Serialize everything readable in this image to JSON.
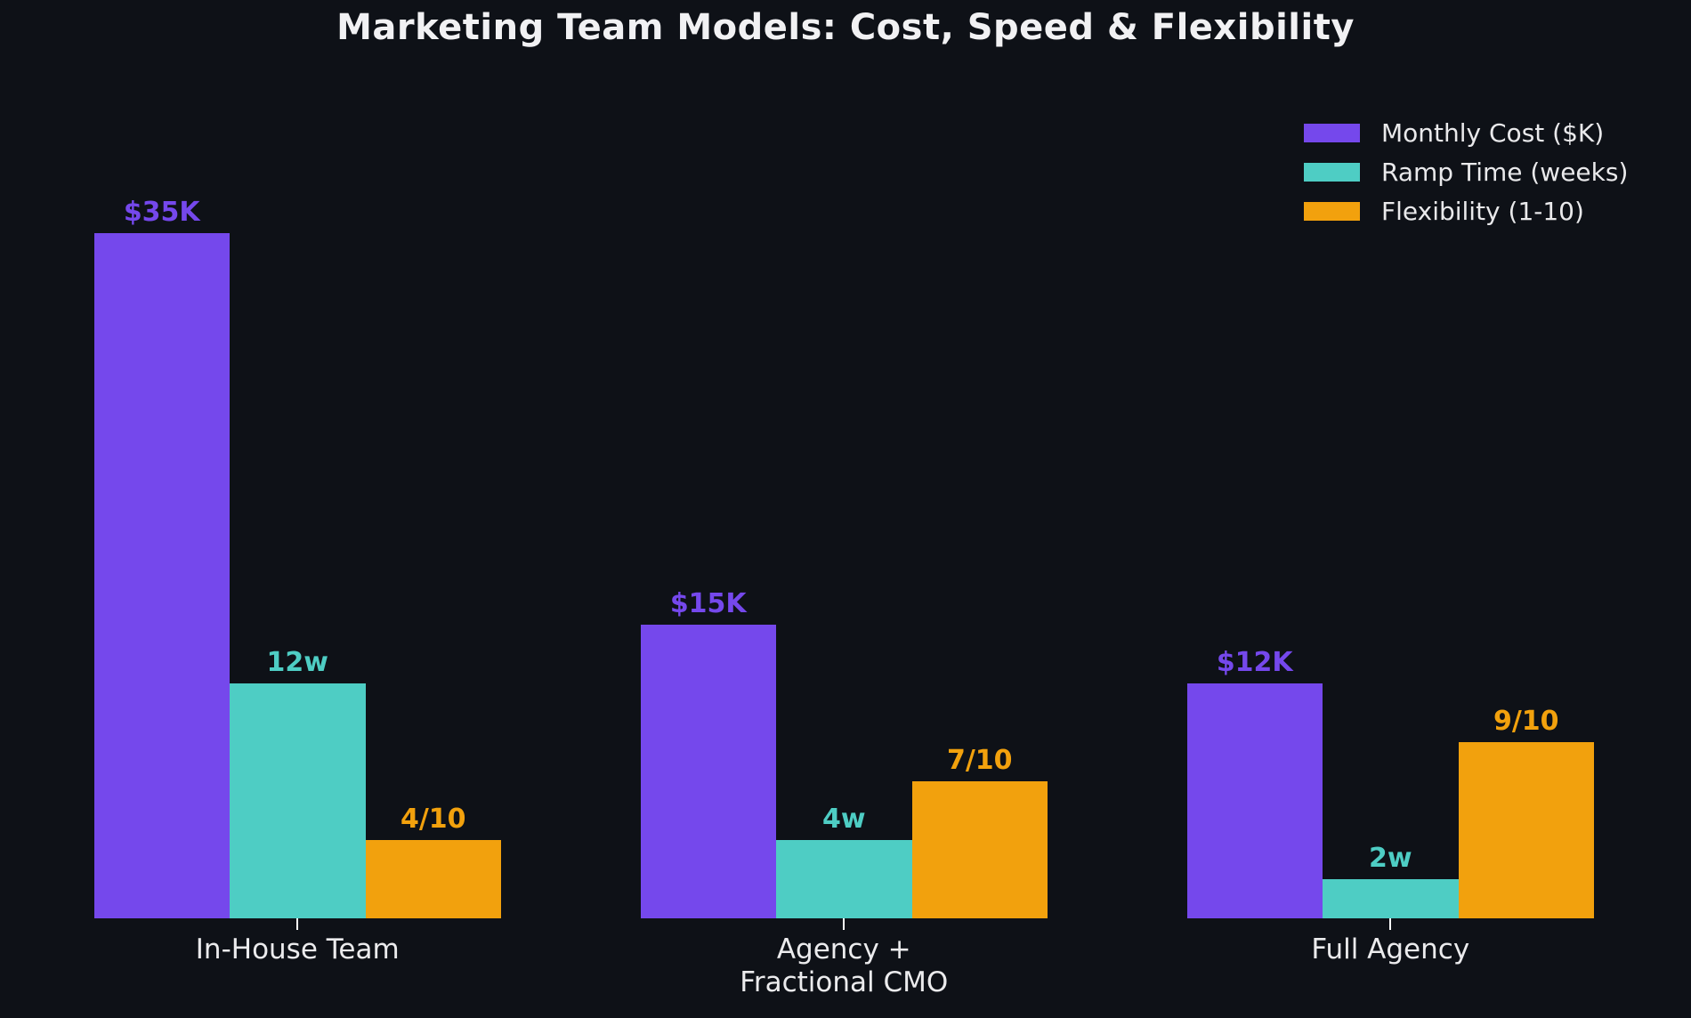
{
  "chart_data": {
    "type": "bar",
    "title": "Marketing Team Models: Cost, Speed & Flexibility",
    "categories": [
      "In-House Team",
      "Agency +\nFractional CMO",
      "Full Agency"
    ],
    "series": [
      {
        "name": "Monthly Cost ($K)",
        "color": "#7548EC",
        "values": [
          35,
          15,
          12
        ],
        "value_labels": [
          "$35K",
          "$15K",
          "$12K"
        ]
      },
      {
        "name": "Ramp Time (weeks)",
        "color": "#4ECDC4",
        "values": [
          12,
          4,
          2
        ],
        "value_labels": [
          "12w",
          "4w",
          "2w"
        ]
      },
      {
        "name": "Flexibility (1-10)",
        "color": "#F2A10D",
        "values": [
          4,
          7,
          9
        ],
        "value_labels": [
          "4/10",
          "7/10",
          "9/10"
        ]
      }
    ],
    "ylim": [
      0,
      35
    ],
    "grid": false,
    "legend_position": "upper right",
    "background_color": "#0E1117",
    "text_color": "#EBEBED",
    "tick_color": "#FFFFFF"
  }
}
